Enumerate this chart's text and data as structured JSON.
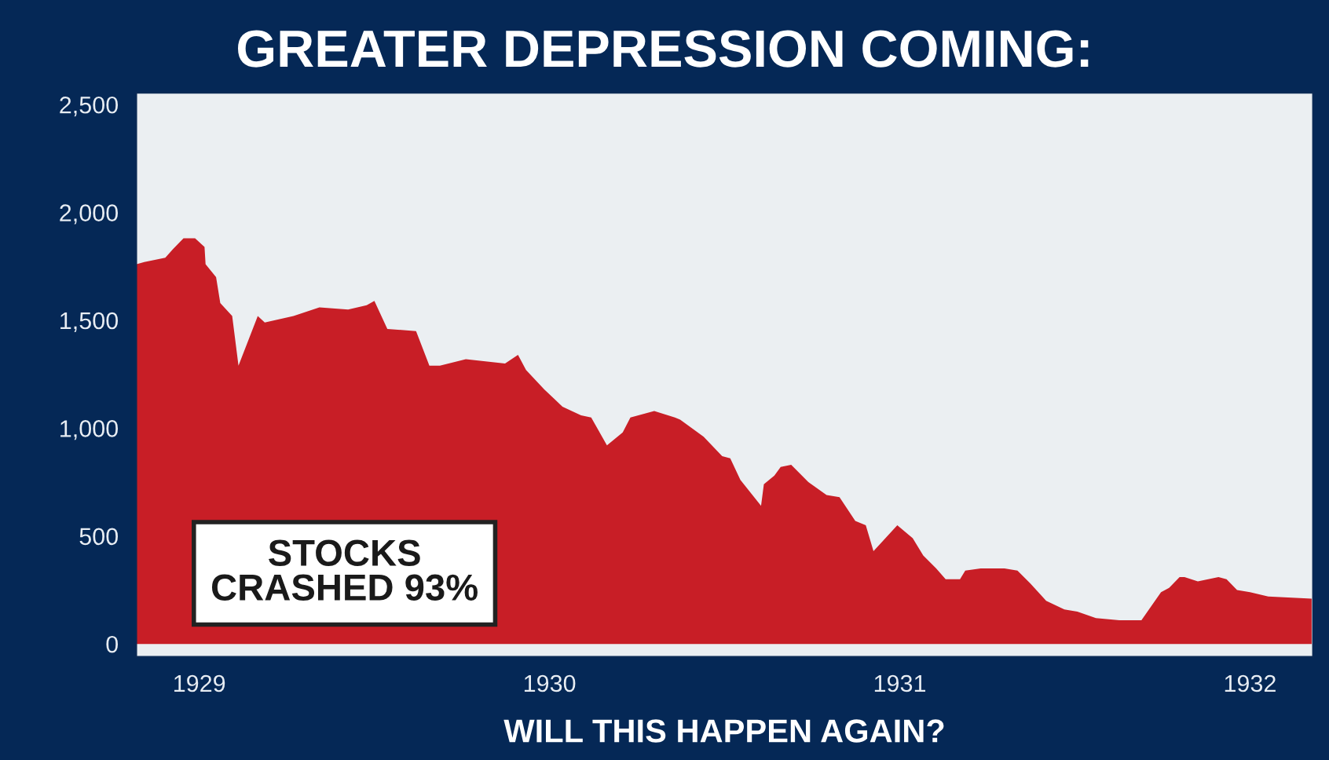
{
  "chart_data": {
    "type": "area",
    "title": "GREATER DEPRESSION COMING:",
    "xlabel": "WILL THIS HAPPEN AGAIN?",
    "annotations": [
      "STOCKS\nCRASHED 93%"
    ],
    "x": [
      1928.821,
      1928.843,
      1928.903,
      1928.925,
      1928.955,
      1928.988,
      1929.015,
      1929.018,
      1929.048,
      1929.06,
      1929.094,
      1929.112,
      1929.167,
      1929.187,
      1929.269,
      1929.343,
      1929.425,
      1929.478,
      1929.5,
      1929.537,
      1929.619,
      1929.657,
      1929.687,
      1929.761,
      1929.873,
      1929.91,
      1929.933,
      1929.985,
      1930.037,
      1930.09,
      1930.119,
      1930.164,
      1930.209,
      1930.231,
      1930.299,
      1930.358,
      1930.373,
      1930.44,
      1930.493,
      1930.516,
      1930.545,
      1930.604,
      1930.612,
      1930.642,
      1930.66,
      1930.69,
      1930.739,
      1930.791,
      1930.828,
      1930.873,
      1930.903,
      1930.925,
      1930.993,
      1931.037,
      1931.067,
      1931.104,
      1931.131,
      1931.172,
      1931.187,
      1931.231,
      1931.299,
      1931.336,
      1931.373,
      1931.418,
      1931.47,
      1931.507,
      1931.56,
      1931.627,
      1931.69,
      1931.746,
      1931.769,
      1931.799,
      1931.813,
      1931.851,
      1931.91,
      1931.933,
      1931.963,
      1932.0,
      1932.052,
      1932.176
    ],
    "series": [
      {
        "color": "#c81e26",
        "values": [
          1760,
          1770,
          1790,
          1830,
          1880,
          1880,
          1840,
          1760,
          1700,
          1580,
          1520,
          1290,
          1520,
          1490,
          1520,
          1560,
          1550,
          1570,
          1590,
          1460,
          1450,
          1290,
          1290,
          1320,
          1300,
          1340,
          1270,
          1180,
          1100,
          1060,
          1050,
          920,
          980,
          1050,
          1080,
          1050,
          1040,
          960,
          870,
          860,
          760,
          640,
          740,
          780,
          820,
          830,
          750,
          690,
          680,
          570,
          550,
          430,
          550,
          490,
          410,
          350,
          300,
          300,
          340,
          350,
          350,
          340,
          280,
          200,
          160,
          150,
          120,
          110,
          110,
          240,
          260,
          310,
          310,
          290,
          310,
          300,
          250,
          240,
          220,
          210
        ]
      }
    ],
    "xlim": [
      1928.82,
      1932.18
    ],
    "xticks": [
      1929,
      1930,
      1931,
      1932
    ],
    "ylim": [
      -60,
      2555
    ],
    "yticks": [
      {
        "value": 0,
        "label": "0"
      },
      {
        "value": 500,
        "label": "500"
      },
      {
        "value": 1000,
        "label": "1,000"
      },
      {
        "value": 1500,
        "label": "1,500"
      },
      {
        "value": 2000,
        "label": "2,000"
      },
      {
        "value": 2500,
        "label": "2,500"
      }
    ],
    "grid": false,
    "legend": false
  }
}
